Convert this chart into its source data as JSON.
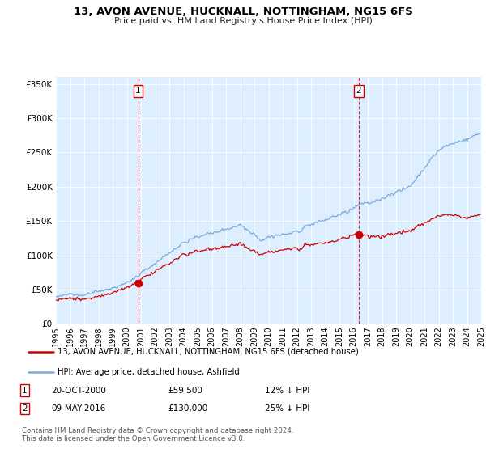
{
  "title": "13, AVON AVENUE, HUCKNALL, NOTTINGHAM, NG15 6FS",
  "subtitle": "Price paid vs. HM Land Registry's House Price Index (HPI)",
  "legend_line1": "13, AVON AVENUE, HUCKNALL, NOTTINGHAM, NG15 6FS (detached house)",
  "legend_line2": "HPI: Average price, detached house, Ashfield",
  "ann1_date": "20-OCT-2000",
  "ann1_price": "£59,500",
  "ann1_pct": "12% ↓ HPI",
  "ann1_x": 2000.8,
  "ann1_y": 59500,
  "ann2_date": "09-MAY-2016",
  "ann2_price": "£130,000",
  "ann2_pct": "25% ↓ HPI",
  "ann2_x": 2016.37,
  "ann2_y": 130000,
  "footer": "Contains HM Land Registry data © Crown copyright and database right 2024.\nThis data is licensed under the Open Government Licence v3.0.",
  "red_color": "#cc0000",
  "blue_color": "#7aaadd",
  "bg_fill": "#ddeeff",
  "ylim": [
    0,
    360000
  ],
  "yticks": [
    0,
    50000,
    100000,
    150000,
    200000,
    250000,
    300000,
    350000
  ],
  "xlim": [
    1995,
    2025
  ],
  "xticks": [
    1995,
    1996,
    1997,
    1998,
    1999,
    2000,
    2001,
    2002,
    2003,
    2004,
    2005,
    2006,
    2007,
    2008,
    2009,
    2010,
    2011,
    2012,
    2013,
    2014,
    2015,
    2016,
    2017,
    2018,
    2019,
    2020,
    2021,
    2022,
    2023,
    2024,
    2025
  ]
}
